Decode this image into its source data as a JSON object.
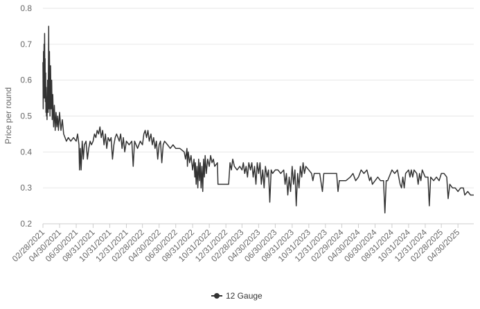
{
  "chart_data": {
    "type": "line",
    "title": "",
    "xlabel": "",
    "ylabel": "Price per round",
    "ylim": [
      0.2,
      0.8
    ],
    "yticks": [
      "0.2",
      "0.3",
      "0.4",
      "0.5",
      "0.6",
      "0.7",
      "0.8"
    ],
    "xlim": [
      "02/28/2021",
      "06/27/2025"
    ],
    "xticks": [
      "02/28/2021",
      "04/30/2021",
      "06/30/2021",
      "08/31/2021",
      "10/31/2021",
      "12/31/2021",
      "02/28/2022",
      "04/30/2022",
      "06/30/2022",
      "08/31/2022",
      "10/31/2022",
      "12/31/2022",
      "02/28/2023",
      "04/30/2023",
      "06/30/2023",
      "08/31/2023",
      "10/31/2023",
      "12/31/2023",
      "02/29/2024",
      "04/30/2024",
      "06/30/2024",
      "08/31/2024",
      "10/31/2024",
      "12/31/2024",
      "02/28/2025",
      "04/30/2025"
    ],
    "grid": true,
    "legend": "bottom-center",
    "colors": {
      "line": "#333333",
      "grid": "#e6e6e6",
      "axis": "#cccccc",
      "tick_text": "#666666"
    },
    "series": [
      {
        "name": "12 Gauge",
        "points": [
          [
            "02/28/2021",
            0.65
          ],
          [
            "03/01/2021",
            0.52
          ],
          [
            "03/02/2021",
            0.68
          ],
          [
            "03/03/2021",
            0.57
          ],
          [
            "03/04/2021",
            0.7
          ],
          [
            "03/05/2021",
            0.55
          ],
          [
            "03/06/2021",
            0.73
          ],
          [
            "03/07/2021",
            0.6
          ],
          [
            "03/08/2021",
            0.66
          ],
          [
            "03/09/2021",
            0.54
          ],
          [
            "03/10/2021",
            0.62
          ],
          [
            "03/11/2021",
            0.51
          ],
          [
            "03/12/2021",
            0.58
          ],
          [
            "03/13/2021",
            0.5
          ],
          [
            "03/14/2021",
            0.55
          ],
          [
            "03/15/2021",
            0.49
          ],
          [
            "03/17/2021",
            0.6
          ],
          [
            "03/19/2021",
            0.51
          ],
          [
            "03/21/2021",
            0.75
          ],
          [
            "03/22/2021",
            0.52
          ],
          [
            "03/24/2021",
            0.68
          ],
          [
            "03/26/2021",
            0.5
          ],
          [
            "03/28/2021",
            0.64
          ],
          [
            "03/30/2021",
            0.52
          ],
          [
            "04/01/2021",
            0.6
          ],
          [
            "04/03/2021",
            0.49
          ],
          [
            "04/05/2021",
            0.56
          ],
          [
            "04/08/2021",
            0.47
          ],
          [
            "04/11/2021",
            0.53
          ],
          [
            "04/14/2021",
            0.46
          ],
          [
            "04/17/2021",
            0.51
          ],
          [
            "04/20/2021",
            0.47
          ],
          [
            "04/23/2021",
            0.5
          ],
          [
            "04/26/2021",
            0.46
          ],
          [
            "04/30/2021",
            0.51
          ],
          [
            "05/05/2021",
            0.46
          ],
          [
            "05/10/2021",
            0.49
          ],
          [
            "05/15/2021",
            0.45
          ],
          [
            "05/20/2021",
            0.44
          ],
          [
            "05/25/2021",
            0.43
          ],
          [
            "06/01/2021",
            0.44
          ],
          [
            "06/10/2021",
            0.43
          ],
          [
            "06/20/2021",
            0.44
          ],
          [
            "06/30/2021",
            0.43
          ],
          [
            "07/05/2021",
            0.45
          ],
          [
            "07/10/2021",
            0.42
          ],
          [
            "07/12/2021",
            0.35
          ],
          [
            "07/15/2021",
            0.41
          ],
          [
            "07/18/2021",
            0.35
          ],
          [
            "07/22/2021",
            0.43
          ],
          [
            "07/26/2021",
            0.38
          ],
          [
            "07/30/2021",
            0.42
          ],
          [
            "08/05/2021",
            0.43
          ],
          [
            "08/10/2021",
            0.38
          ],
          [
            "08/15/2021",
            0.41
          ],
          [
            "08/20/2021",
            0.43
          ],
          [
            "08/25/2021",
            0.42
          ],
          [
            "08/31/2021",
            0.43
          ],
          [
            "09/05/2021",
            0.45
          ],
          [
            "09/10/2021",
            0.44
          ],
          [
            "09/15/2021",
            0.46
          ],
          [
            "09/20/2021",
            0.45
          ],
          [
            "09/25/2021",
            0.47
          ],
          [
            "09/30/2021",
            0.44
          ],
          [
            "10/05/2021",
            0.46
          ],
          [
            "10/10/2021",
            0.42
          ],
          [
            "10/15/2021",
            0.45
          ],
          [
            "10/20/2021",
            0.41
          ],
          [
            "10/25/2021",
            0.44
          ],
          [
            "10/31/2021",
            0.43
          ],
          [
            "11/05/2021",
            0.44
          ],
          [
            "11/10/2021",
            0.38
          ],
          [
            "11/15/2021",
            0.42
          ],
          [
            "11/20/2021",
            0.44
          ],
          [
            "11/25/2021",
            0.45
          ],
          [
            "11/30/2021",
            0.44
          ],
          [
            "12/05/2021",
            0.43
          ],
          [
            "12/10/2021",
            0.45
          ],
          [
            "12/15/2021",
            0.41
          ],
          [
            "12/20/2021",
            0.44
          ],
          [
            "12/25/2021",
            0.4
          ],
          [
            "12/31/2021",
            0.43
          ],
          [
            "01/10/2022",
            0.42
          ],
          [
            "01/20/2022",
            0.43
          ],
          [
            "01/25/2022",
            0.36
          ],
          [
            "01/30/2022",
            0.43
          ],
          [
            "02/10/2022",
            0.41
          ],
          [
            "02/20/2022",
            0.43
          ],
          [
            "02/28/2022",
            0.42
          ],
          [
            "03/05/2022",
            0.45
          ],
          [
            "03/10/2022",
            0.46
          ],
          [
            "03/15/2022",
            0.44
          ],
          [
            "03/20/2022",
            0.46
          ],
          [
            "03/25/2022",
            0.43
          ],
          [
            "03/31/2022",
            0.45
          ],
          [
            "04/05/2022",
            0.42
          ],
          [
            "04/10/2022",
            0.44
          ],
          [
            "04/15/2022",
            0.41
          ],
          [
            "04/20/2022",
            0.43
          ],
          [
            "04/25/2022",
            0.38
          ],
          [
            "04/30/2022",
            0.42
          ],
          [
            "05/05/2022",
            0.43
          ],
          [
            "05/10/2022",
            0.37
          ],
          [
            "05/15/2022",
            0.42
          ],
          [
            "05/20/2022",
            0.43
          ],
          [
            "05/31/2022",
            0.42
          ],
          [
            "06/10/2022",
            0.41
          ],
          [
            "06/20/2022",
            0.42
          ],
          [
            "06/30/2022",
            0.41
          ],
          [
            "07/15/2022",
            0.41
          ],
          [
            "07/31/2022",
            0.4
          ],
          [
            "08/05/2022",
            0.38
          ],
          [
            "08/10/2022",
            0.41
          ],
          [
            "08/12/2022",
            0.36
          ],
          [
            "08/15/2022",
            0.4
          ],
          [
            "08/20/2022",
            0.37
          ],
          [
            "08/25/2022",
            0.39
          ],
          [
            "08/31/2022",
            0.35
          ],
          [
            "09/05/2022",
            0.38
          ],
          [
            "09/08/2022",
            0.33
          ],
          [
            "09/10/2022",
            0.37
          ],
          [
            "09/13/2022",
            0.31
          ],
          [
            "09/16/2022",
            0.36
          ],
          [
            "09/19/2022",
            0.3
          ],
          [
            "09/22/2022",
            0.38
          ],
          [
            "09/25/2022",
            0.32
          ],
          [
            "09/28/2022",
            0.37
          ],
          [
            "10/01/2022",
            0.3
          ],
          [
            "10/04/2022",
            0.36
          ],
          [
            "10/07/2022",
            0.29
          ],
          [
            "10/10/2022",
            0.38
          ],
          [
            "10/13/2022",
            0.33
          ],
          [
            "10/16/2022",
            0.39
          ],
          [
            "10/20/2022",
            0.34
          ],
          [
            "10/25/2022",
            0.38
          ],
          [
            "10/31/2022",
            0.36
          ],
          [
            "11/05/2022",
            0.39
          ],
          [
            "11/10/2022",
            0.37
          ],
          [
            "11/15/2022",
            0.38
          ],
          [
            "11/20/2022",
            0.36
          ],
          [
            "11/30/2022",
            0.37
          ],
          [
            "12/02/2022",
            0.31
          ],
          [
            "12/15/2022",
            0.31
          ],
          [
            "12/31/2022",
            0.31
          ],
          [
            "01/10/2023",
            0.31
          ],
          [
            "01/15/2023",
            0.37
          ],
          [
            "01/20/2023",
            0.35
          ],
          [
            "01/25/2023",
            0.38
          ],
          [
            "01/31/2023",
            0.36
          ],
          [
            "02/10/2023",
            0.35
          ],
          [
            "02/20/2023",
            0.36
          ],
          [
            "02/28/2023",
            0.35
          ],
          [
            "03/05/2023",
            0.37
          ],
          [
            "03/10/2023",
            0.34
          ],
          [
            "03/15/2023",
            0.36
          ],
          [
            "03/20/2023",
            0.33
          ],
          [
            "03/25/2023",
            0.37
          ],
          [
            "03/31/2023",
            0.35
          ],
          [
            "04/05/2023",
            0.37
          ],
          [
            "04/10/2023",
            0.33
          ],
          [
            "04/15/2023",
            0.36
          ],
          [
            "04/20/2023",
            0.31
          ],
          [
            "04/25/2023",
            0.37
          ],
          [
            "04/30/2023",
            0.34
          ],
          [
            "05/05/2023",
            0.37
          ],
          [
            "05/10/2023",
            0.31
          ],
          [
            "05/15/2023",
            0.35
          ],
          [
            "05/20/2023",
            0.3
          ],
          [
            "05/25/2023",
            0.36
          ],
          [
            "05/31/2023",
            0.33
          ],
          [
            "06/05/2023",
            0.35
          ],
          [
            "06/10/2023",
            0.26
          ],
          [
            "06/15/2023",
            0.35
          ],
          [
            "06/20/2023",
            0.34
          ],
          [
            "06/30/2023",
            0.35
          ],
          [
            "07/10/2023",
            0.35
          ],
          [
            "07/20/2023",
            0.34
          ],
          [
            "07/31/2023",
            0.35
          ],
          [
            "08/05/2023",
            0.31
          ],
          [
            "08/10/2023",
            0.34
          ],
          [
            "08/15/2023",
            0.28
          ],
          [
            "08/20/2023",
            0.33
          ],
          [
            "08/25/2023",
            0.29
          ],
          [
            "08/31/2023",
            0.36
          ],
          [
            "09/05/2023",
            0.31
          ],
          [
            "09/10/2023",
            0.35
          ],
          [
            "09/15/2023",
            0.25
          ],
          [
            "09/20/2023",
            0.34
          ],
          [
            "09/25/2023",
            0.3
          ],
          [
            "09/30/2023",
            0.36
          ],
          [
            "10/05/2023",
            0.33
          ],
          [
            "10/10/2023",
            0.37
          ],
          [
            "10/15/2023",
            0.34
          ],
          [
            "10/20/2023",
            0.36
          ],
          [
            "10/31/2023",
            0.35
          ],
          [
            "11/10/2023",
            0.34
          ],
          [
            "11/15/2023",
            0.32
          ],
          [
            "11/20/2023",
            0.34
          ],
          [
            "11/30/2023",
            0.34
          ],
          [
            "12/10/2023",
            0.34
          ],
          [
            "12/20/2023",
            0.29
          ],
          [
            "12/25/2023",
            0.34
          ],
          [
            "12/31/2023",
            0.34
          ],
          [
            "01/31/2024",
            0.34
          ],
          [
            "02/10/2024",
            0.34
          ],
          [
            "02/15/2024",
            0.29
          ],
          [
            "02/20/2024",
            0.32
          ],
          [
            "02/29/2024",
            0.32
          ],
          [
            "03/15/2024",
            0.32
          ],
          [
            "03/31/2024",
            0.33
          ],
          [
            "04/10/2024",
            0.34
          ],
          [
            "04/20/2024",
            0.32
          ],
          [
            "04/30/2024",
            0.33
          ],
          [
            "05/10/2024",
            0.35
          ],
          [
            "05/20/2024",
            0.34
          ],
          [
            "05/31/2024",
            0.35
          ],
          [
            "06/10/2024",
            0.32
          ],
          [
            "06/15/2024",
            0.33
          ],
          [
            "06/20/2024",
            0.31
          ],
          [
            "06/30/2024",
            0.32
          ],
          [
            "07/10/2024",
            0.33
          ],
          [
            "07/20/2024",
            0.32
          ],
          [
            "07/31/2024",
            0.32
          ],
          [
            "08/05/2024",
            0.23
          ],
          [
            "08/10/2024",
            0.32
          ],
          [
            "08/15/2024",
            0.32
          ],
          [
            "08/31/2024",
            0.35
          ],
          [
            "09/10/2024",
            0.34
          ],
          [
            "09/20/2024",
            0.35
          ],
          [
            "09/25/2024",
            0.33
          ],
          [
            "09/30/2024",
            0.31
          ],
          [
            "10/05/2024",
            0.3
          ],
          [
            "10/10/2024",
            0.33
          ],
          [
            "10/15/2024",
            0.3
          ],
          [
            "10/20/2024",
            0.34
          ],
          [
            "10/31/2024",
            0.35
          ],
          [
            "11/05/2024",
            0.33
          ],
          [
            "11/10/2024",
            0.35
          ],
          [
            "11/15/2024",
            0.33
          ],
          [
            "11/20/2024",
            0.35
          ],
          [
            "11/30/2024",
            0.34
          ],
          [
            "12/05/2024",
            0.31
          ],
          [
            "12/10/2024",
            0.34
          ],
          [
            "12/15/2024",
            0.32
          ],
          [
            "12/20/2024",
            0.35
          ],
          [
            "12/31/2024",
            0.33
          ],
          [
            "01/10/2025",
            0.33
          ],
          [
            "01/15/2025",
            0.25
          ],
          [
            "01/20/2025",
            0.33
          ],
          [
            "01/31/2025",
            0.32
          ],
          [
            "02/10/2025",
            0.33
          ],
          [
            "02/20/2025",
            0.32
          ],
          [
            "02/28/2025",
            0.34
          ],
          [
            "03/10/2025",
            0.34
          ],
          [
            "03/20/2025",
            0.33
          ],
          [
            "03/25/2025",
            0.27
          ],
          [
            "03/31/2025",
            0.31
          ],
          [
            "04/10/2025",
            0.3
          ],
          [
            "04/20/2025",
            0.3
          ],
          [
            "04/30/2025",
            0.29
          ],
          [
            "05/10/2025",
            0.3
          ],
          [
            "05/20/2025",
            0.3
          ],
          [
            "05/25/2025",
            0.28
          ],
          [
            "06/05/2025",
            0.29
          ],
          [
            "06/15/2025",
            0.28
          ],
          [
            "06/27/2025",
            0.28
          ]
        ]
      }
    ]
  }
}
